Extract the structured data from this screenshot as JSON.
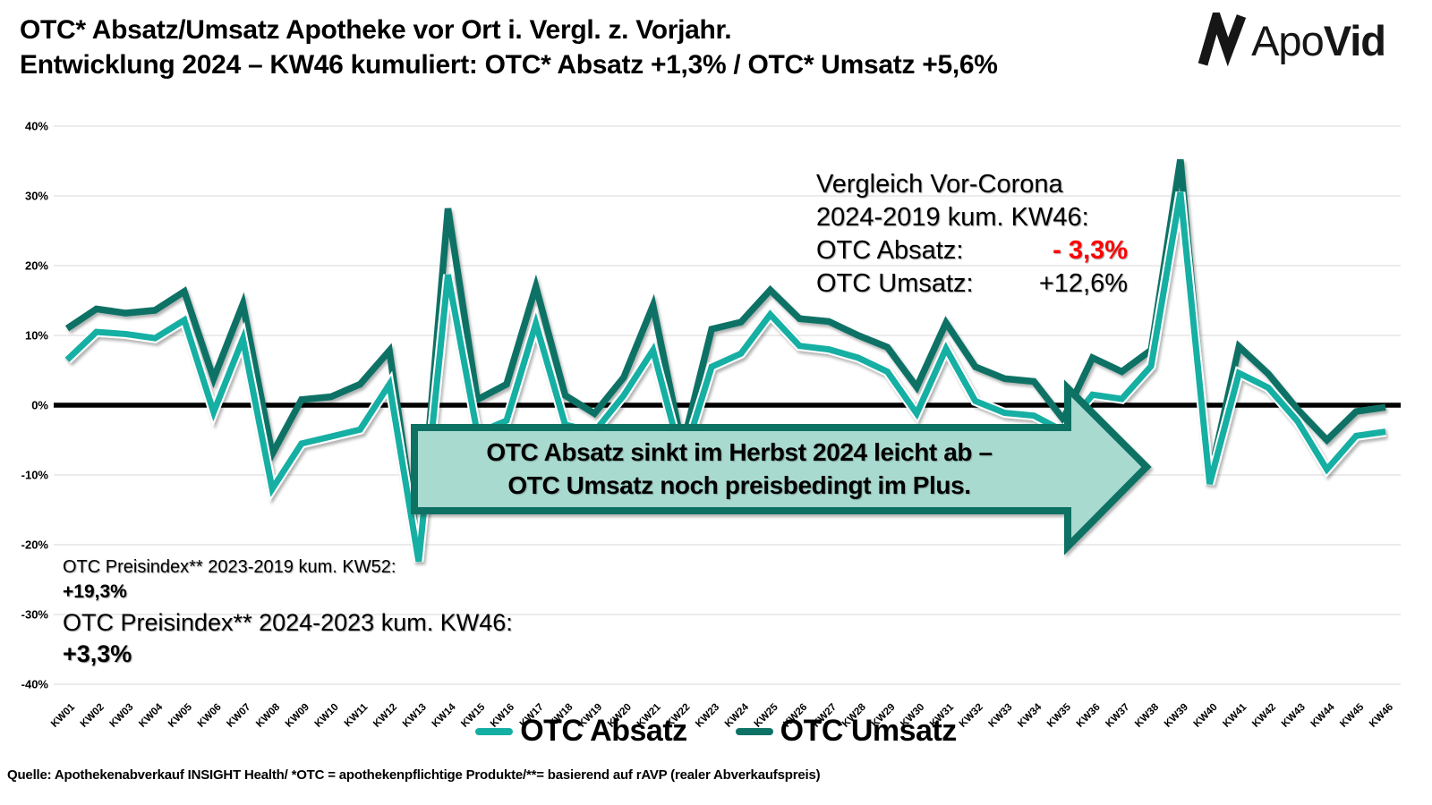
{
  "header": {
    "title_line1": "OTC* Absatz/Umsatz Apotheke vor Ort i. Vergl. z. Vorjahr.",
    "title_line2": "Entwicklung 2024 – KW46 kumuliert: OTC* Absatz +1,3% / OTC* Umsatz +5,6%",
    "logo_regular": "Apo",
    "logo_bold": "Vid"
  },
  "chart_data": {
    "type": "line",
    "title": "OTC Absatz/Umsatz Apotheke vor Ort im Vergleich zum Vorjahr, 2024 bis KW46",
    "categories": [
      "KW01",
      "KW02",
      "KW03",
      "KW04",
      "KW05",
      "KW06",
      "KW07",
      "KW08",
      "KW09",
      "KW10",
      "KW11",
      "KW12",
      "KW13",
      "KW14",
      "KW15",
      "KW16",
      "KW17",
      "KW18",
      "KW19",
      "KW20",
      "KW21",
      "KW22",
      "KW23",
      "KW24",
      "KW25",
      "KW26",
      "KW27",
      "KW28",
      "KW29",
      "KW30",
      "KW31",
      "KW32",
      "KW33",
      "KW34",
      "KW35",
      "KW36",
      "KW37",
      "KW38",
      "KW39",
      "KW40",
      "KW41",
      "KW42",
      "KW43",
      "KW44",
      "KW45",
      "KW46"
    ],
    "series": [
      {
        "name": "OTC Absatz",
        "color": "#14AFA3",
        "values": [
          6.5,
          10.5,
          10.2,
          9.6,
          12.2,
          -1,
          9.5,
          -12,
          -5.5,
          -4.5,
          -3.5,
          3,
          -22.4,
          18.7,
          -4,
          -2.2,
          11.7,
          -2.8,
          -3.8,
          1.4,
          7.9,
          -8,
          5.5,
          7.4,
          13,
          8.5,
          8,
          6.8,
          4.8,
          -1.2,
          8.1,
          0.6,
          -1.1,
          -1.5,
          -3.7,
          1.5,
          0.9,
          5.6,
          30.5,
          -11.3,
          4.6,
          2.5,
          -2.3,
          -9.2,
          -4.4,
          -3.8
        ]
      },
      {
        "name": "OTC Umsatz",
        "color": "#0C7265",
        "values": [
          11,
          13.8,
          13.2,
          13.6,
          16.3,
          3.8,
          14.5,
          -7,
          0.8,
          1.2,
          3,
          7.8,
          -21.2,
          28.2,
          0.8,
          3,
          17,
          1.4,
          -1.2,
          4,
          14.3,
          -6,
          10.9,
          11.9,
          16.5,
          12.4,
          12,
          10,
          8.3,
          2.6,
          11.8,
          5.5,
          3.8,
          3.4,
          -2,
          6.8,
          4.8,
          7.9,
          35.2,
          -10.5,
          8.4,
          4.5,
          -0.6,
          -5,
          -0.9,
          -0.3
        ]
      }
    ],
    "ylim": [
      -40,
      40
    ],
    "ytick_step": 10,
    "ytick_suffix": "%",
    "grid": true,
    "zero_line_color": "#000000",
    "gridline_color": "#d9d9d9",
    "legend_position": "bottom"
  },
  "annotations": {
    "vor_corona": {
      "line1": "Vergleich Vor-Corona",
      "line2": "2024-2019 kum. KW46:",
      "absatz_label": "OTC Absatz:",
      "absatz_value": "- 3,3%",
      "umsatz_label": "OTC Umsatz:",
      "umsatz_value": "+12,6%"
    },
    "arrow": {
      "line1": "OTC Absatz sinkt im Herbst 2024 leicht ab –",
      "line2": "OTC Umsatz noch preisbedingt im Plus.",
      "fill": "#A9DACF",
      "border": "#0E7163"
    },
    "preisindex": {
      "line1": "OTC Preisindex** 2023-2019 kum. KW52:",
      "value1": "+19,3%",
      "line2": "OTC Preisindex** 2024-2023 kum. KW46:",
      "value2": "+3,3%"
    }
  },
  "legend": {
    "items": [
      {
        "label": "OTC Absatz",
        "color": "#14AFA3"
      },
      {
        "label": "OTC Umsatz",
        "color": "#0C7265"
      }
    ]
  },
  "footer": {
    "source": "Quelle: Apothekenabverkauf INSIGHT Health/ *OTC = apothekenpflichtige Produkte/**= basierend auf rAVP (realer Abverkaufspreis)"
  }
}
